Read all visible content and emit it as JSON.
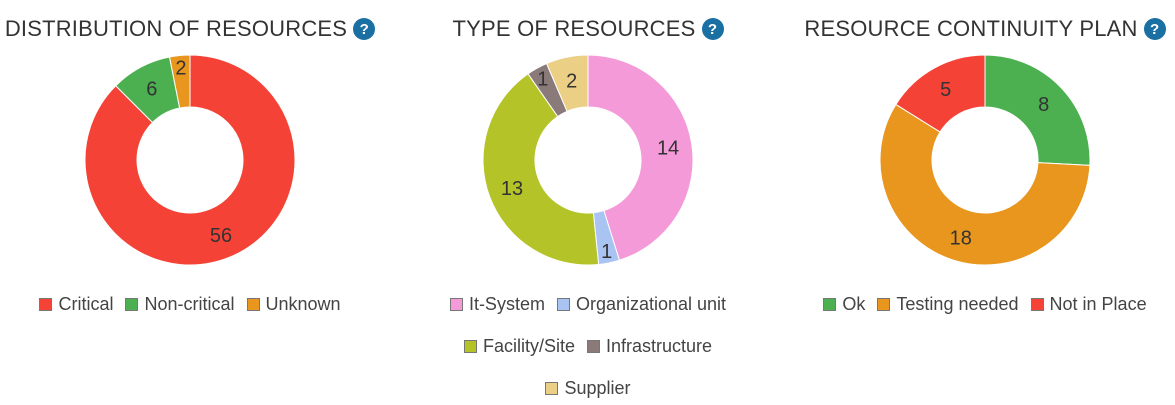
{
  "chart_data": [
    {
      "type": "pie",
      "title": "DISTRIBUTION OF RESOURCES",
      "categories": [
        "Critical",
        "Non-critical",
        "Unknown"
      ],
      "values": [
        56,
        6,
        2
      ],
      "colors": [
        "#f44336",
        "#4caf50",
        "#e8961e"
      ],
      "legend": "bottom",
      "donut": true
    },
    {
      "type": "pie",
      "title": "TYPE OF RESOURCES",
      "categories": [
        "It-System",
        "Organizational unit",
        "Facility/Site",
        "Infrastructure",
        "Supplier"
      ],
      "values": [
        14,
        1,
        13,
        1,
        2
      ],
      "colors": [
        "#f49ad8",
        "#a9c4f3",
        "#b4c327",
        "#8a7a7a",
        "#ebcf85"
      ],
      "legend": "bottom",
      "donut": true
    },
    {
      "type": "pie",
      "title": "RESOURCE CONTINUITY PLAN",
      "categories": [
        "Ok",
        "Testing needed",
        "Not in Place"
      ],
      "values": [
        8,
        18,
        5
      ],
      "colors": [
        "#4caf50",
        "#e8961e",
        "#f44336"
      ],
      "legend": "bottom",
      "donut": true
    }
  ],
  "help_icon": "question-circle-icon"
}
